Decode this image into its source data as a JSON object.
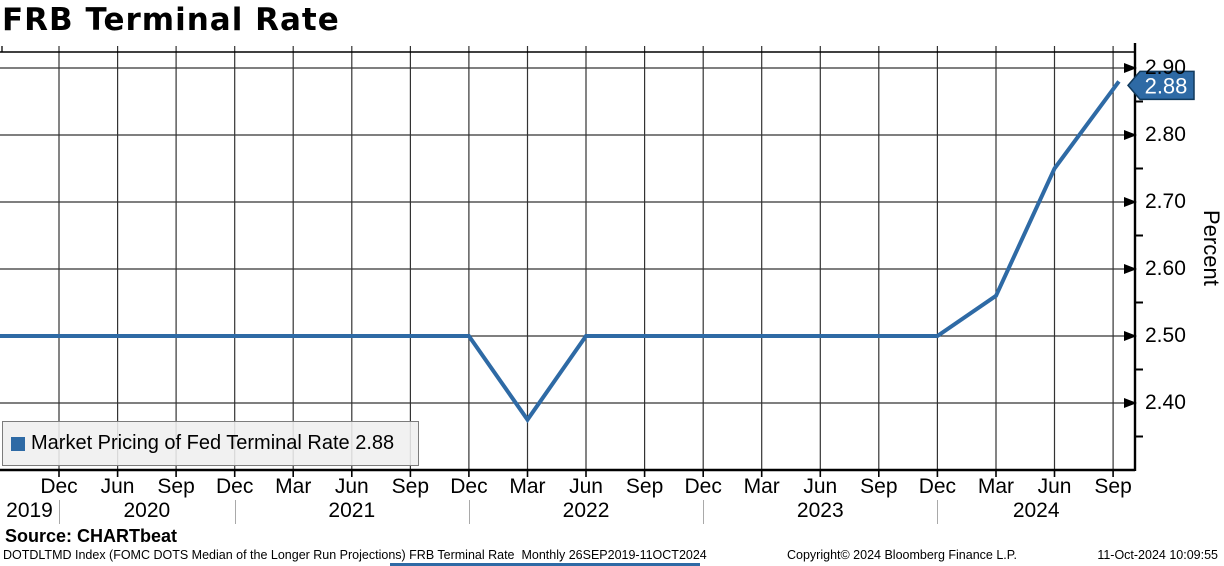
{
  "title": "FRB Terminal Rate",
  "legend": {
    "label": "Market Pricing of Fed Terminal Rate 2.88"
  },
  "source": "Source: CHARTbeat",
  "footer": {
    "left": "DOTDLTMD Index (FOMC DOTS Median of the Longer Run Projections) FRB Terminal Rate  Monthly 26SEP2019-11OCT2024",
    "copyright": "Copyright© 2024 Bloomberg Finance L.P.",
    "timestamp": "11-Oct-2024 10:09:55"
  },
  "chart_data": {
    "type": "line",
    "title": "FRB Terminal Rate",
    "ylabel": "Percent",
    "ylabel_side": "right",
    "grid": true,
    "ylim": [
      2.3,
      2.92
    ],
    "y_major_ticks": [
      "2.90",
      "2.80",
      "2.70",
      "2.60",
      "2.50",
      "2.40"
    ],
    "y_minor_ticks": [
      2.85,
      2.75,
      2.65,
      2.55,
      2.45,
      2.35
    ],
    "x_tick_labels": [
      "Dec",
      "Jun",
      "Sep",
      "Dec",
      "Mar",
      "Jun",
      "Sep",
      "Dec",
      "Mar",
      "Jun",
      "Sep",
      "Dec",
      "Mar",
      "Jun",
      "Sep",
      "Dec",
      "Mar",
      "Jun",
      "Sep"
    ],
    "years": [
      {
        "label": "2019",
        "t0": -1.1,
        "t1": 0
      },
      {
        "label": "2020",
        "t0": 0,
        "t1": 3
      },
      {
        "label": "2021",
        "t0": 3,
        "t1": 7
      },
      {
        "label": "2022",
        "t0": 7,
        "t1": 11
      },
      {
        "label": "2023",
        "t0": 11,
        "t1": 15
      },
      {
        "label": "2024",
        "t0": 15,
        "t1": 20
      }
    ],
    "series": [
      {
        "name": "Market Pricing of Fed Terminal Rate",
        "color": "#2e6aa5",
        "last_value": 2.88,
        "points": [
          {
            "date": "Sep 2019",
            "value": 2.5,
            "xt": -1.05
          },
          {
            "date": "Dec 2021",
            "value": 2.5,
            "xt": 7
          },
          {
            "date": "Mar 2022",
            "value": 2.375,
            "xt": 8
          },
          {
            "date": "Jun 2022",
            "value": 2.5,
            "xt": 9
          },
          {
            "date": "Dec 2023",
            "value": 2.5,
            "xt": 15
          },
          {
            "date": "Mar 2024",
            "value": 2.56,
            "xt": 16
          },
          {
            "date": "Jun 2024",
            "value": 2.75,
            "xt": 17
          },
          {
            "date": "Oct 2024",
            "value": 2.88,
            "xt": 18.1
          }
        ]
      }
    ],
    "last_value_label": "2.88",
    "period": "Monthly 26SEP2019-11OCT2024"
  }
}
